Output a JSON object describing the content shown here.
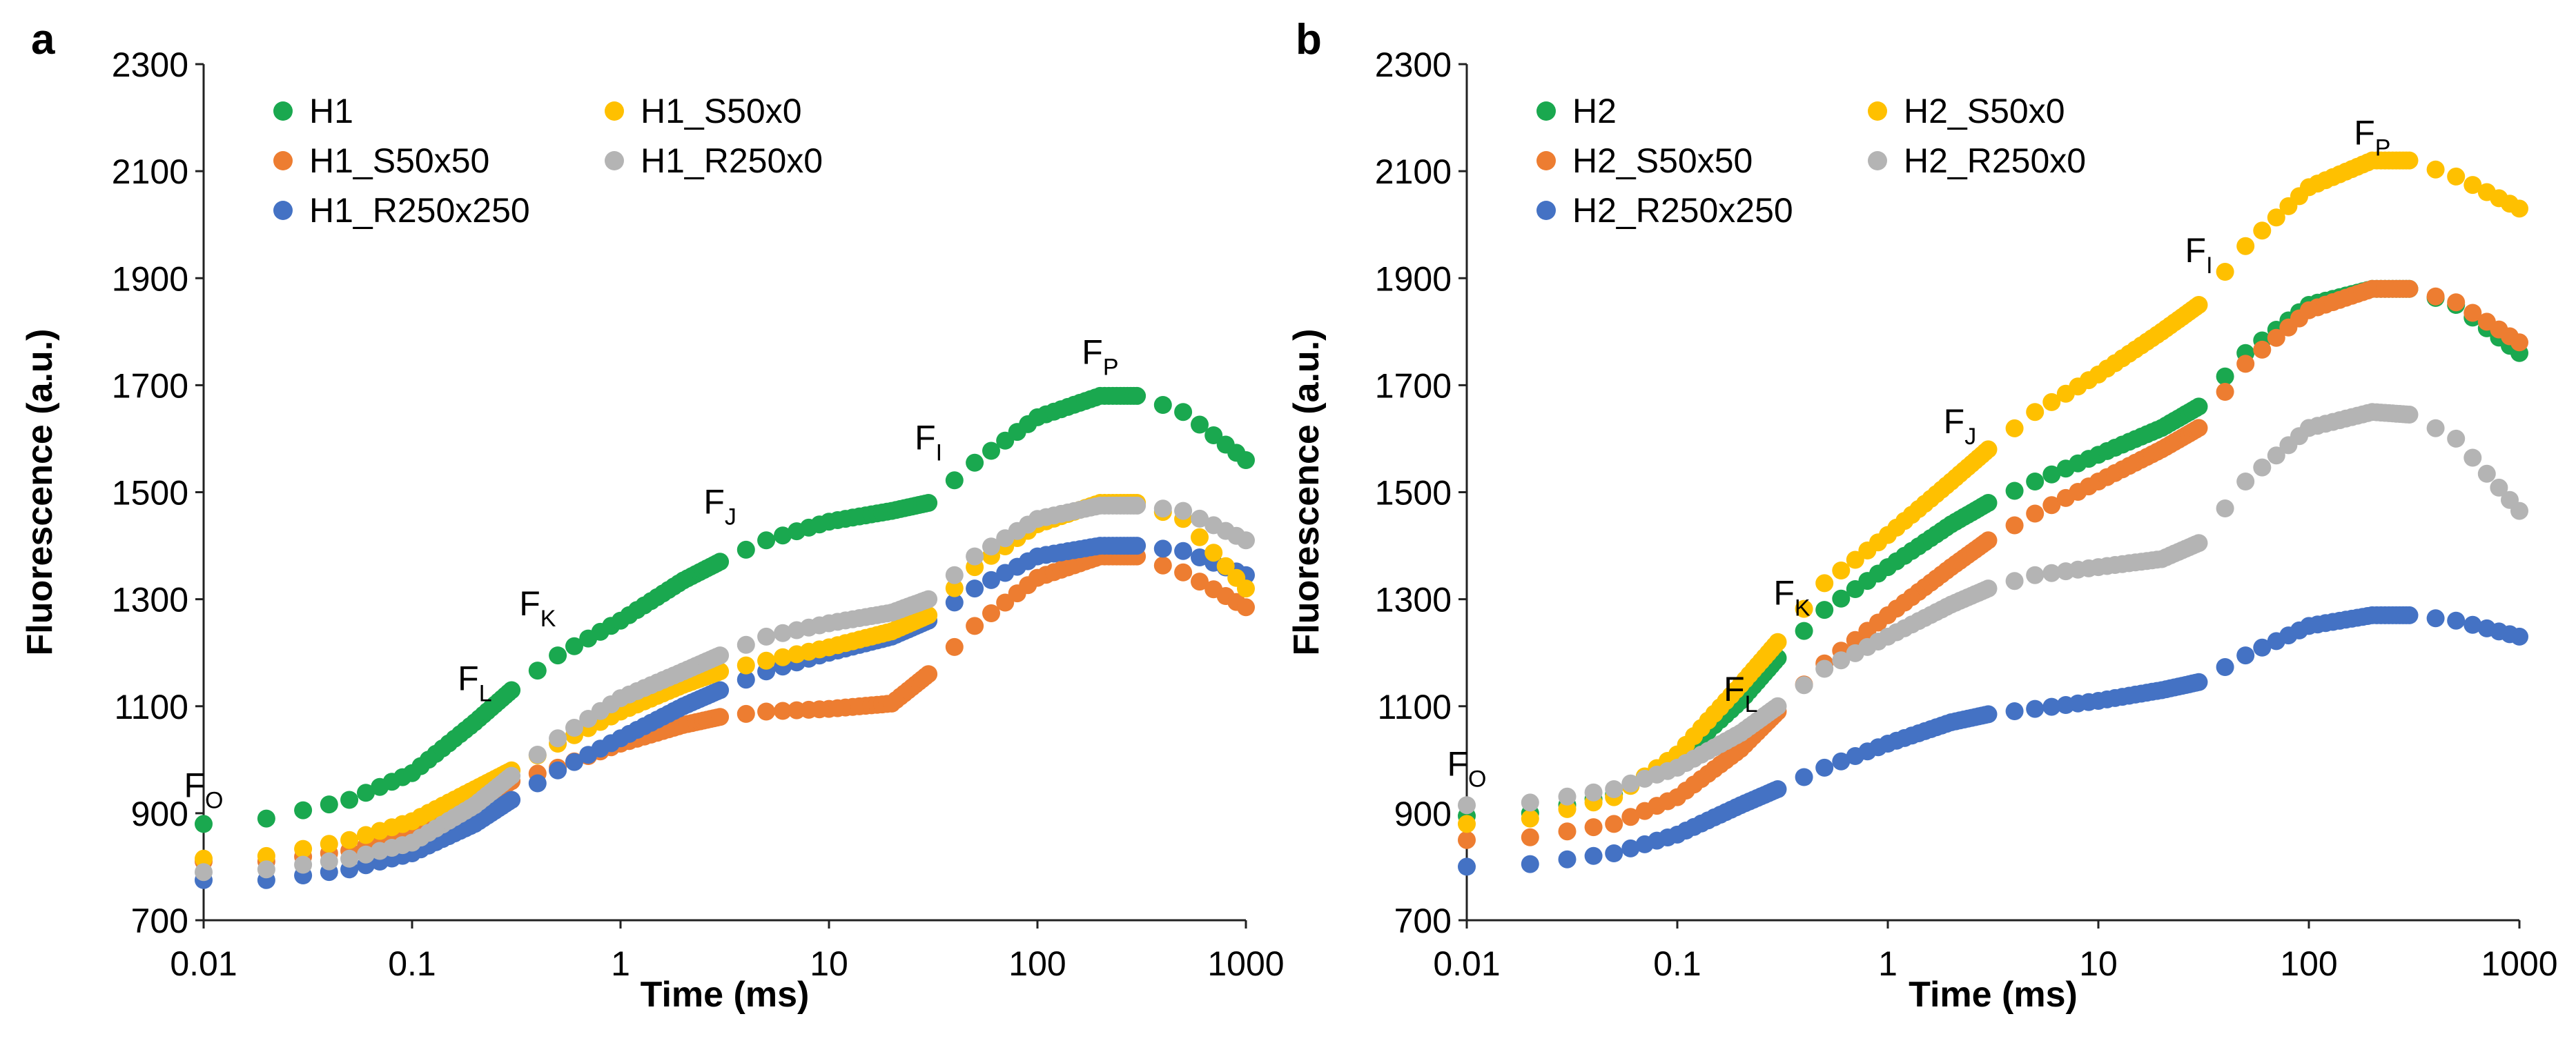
{
  "chart_data": [
    {
      "panel_label": "a",
      "type": "scatter",
      "xlabel": "Time (ms)",
      "ylabel": "Fluorescence (a.u.)",
      "xscale": "log",
      "xlim": [
        0.01,
        1000
      ],
      "ylim": [
        700,
        2300
      ],
      "xticks": [
        0.01,
        0.1,
        1,
        10,
        100,
        1000
      ],
      "xtick_labels": [
        "0.01",
        "0.1",
        "1",
        "10",
        "100",
        "1000"
      ],
      "yticks": [
        700,
        900,
        1100,
        1300,
        1500,
        1700,
        1900,
        2100,
        2300
      ],
      "ytick_labels": [
        "700",
        "900",
        "1100",
        "1300",
        "1500",
        "1700",
        "1900",
        "2100",
        "2300"
      ],
      "grid": false,
      "legend_position": "top-left",
      "series": [
        {
          "name": "H1",
          "color": "#1aa84f",
          "anchors": [
            [
              0.01,
              880
            ],
            [
              0.02,
              890
            ],
            [
              0.05,
              925
            ],
            [
              0.1,
              975
            ],
            [
              0.2,
              1070
            ],
            [
              0.3,
              1130
            ],
            [
              0.5,
              1195
            ],
            [
              1,
              1260
            ],
            [
              2,
              1335
            ],
            [
              3,
              1370
            ],
            [
              5,
              1410
            ],
            [
              10,
              1445
            ],
            [
              20,
              1465
            ],
            [
              30,
              1480
            ],
            [
              50,
              1555
            ],
            [
              100,
              1640
            ],
            [
              200,
              1680
            ],
            [
              300,
              1680
            ],
            [
              500,
              1650
            ],
            [
              1000,
              1560
            ]
          ]
        },
        {
          "name": "H1_S50x50",
          "color": "#ed7d31",
          "anchors": [
            [
              0.01,
              810
            ],
            [
              0.02,
              810
            ],
            [
              0.05,
              830
            ],
            [
              0.1,
              860
            ],
            [
              0.2,
              920
            ],
            [
              0.3,
              960
            ],
            [
              0.5,
              985
            ],
            [
              1,
              1030
            ],
            [
              2,
              1065
            ],
            [
              3,
              1080
            ],
            [
              5,
              1090
            ],
            [
              10,
              1095
            ],
            [
              20,
              1105
            ],
            [
              30,
              1160
            ],
            [
              50,
              1250
            ],
            [
              100,
              1340
            ],
            [
              200,
              1380
            ],
            [
              300,
              1380
            ],
            [
              500,
              1350
            ],
            [
              1000,
              1285
            ]
          ]
        },
        {
          "name": "H1_R250x250",
          "color": "#4472c4",
          "anchors": [
            [
              0.01,
              775
            ],
            [
              0.02,
              775
            ],
            [
              0.05,
              795
            ],
            [
              0.1,
              825
            ],
            [
              0.2,
              880
            ],
            [
              0.3,
              925
            ],
            [
              0.5,
              980
            ],
            [
              1,
              1040
            ],
            [
              2,
              1100
            ],
            [
              3,
              1130
            ],
            [
              5,
              1165
            ],
            [
              10,
              1200
            ],
            [
              20,
              1230
            ],
            [
              30,
              1260
            ],
            [
              50,
              1320
            ],
            [
              100,
              1380
            ],
            [
              200,
              1400
            ],
            [
              300,
              1400
            ],
            [
              500,
              1390
            ],
            [
              1000,
              1345
            ]
          ]
        },
        {
          "name": "H1_S50x0",
          "color": "#ffc000",
          "anchors": [
            [
              0.01,
              815
            ],
            [
              0.02,
              820
            ],
            [
              0.05,
              850
            ],
            [
              0.1,
              885
            ],
            [
              0.2,
              945
            ],
            [
              0.3,
              980
            ],
            [
              0.5,
              1030
            ],
            [
              1,
              1090
            ],
            [
              2,
              1140
            ],
            [
              3,
              1165
            ],
            [
              5,
              1185
            ],
            [
              10,
              1210
            ],
            [
              20,
              1240
            ],
            [
              30,
              1270
            ],
            [
              50,
              1360
            ],
            [
              100,
              1440
            ],
            [
              200,
              1480
            ],
            [
              300,
              1480
            ],
            [
              500,
              1450
            ],
            [
              1000,
              1320
            ]
          ]
        },
        {
          "name": "H1_R250x0",
          "color": "#b4b4b4",
          "anchors": [
            [
              0.01,
              790
            ],
            [
              0.02,
              795
            ],
            [
              0.05,
              815
            ],
            [
              0.1,
              845
            ],
            [
              0.2,
              915
            ],
            [
              0.3,
              970
            ],
            [
              0.5,
              1040
            ],
            [
              1,
              1115
            ],
            [
              2,
              1165
            ],
            [
              3,
              1195
            ],
            [
              5,
              1230
            ],
            [
              10,
              1255
            ],
            [
              20,
              1275
            ],
            [
              30,
              1300
            ],
            [
              50,
              1380
            ],
            [
              100,
              1450
            ],
            [
              200,
              1475
            ],
            [
              300,
              1475
            ],
            [
              500,
              1465
            ],
            [
              1000,
              1410
            ]
          ]
        }
      ],
      "annotations": [
        {
          "main": "F",
          "sub": "O",
          "x": 0.01,
          "y": 930
        },
        {
          "main": "F",
          "sub": "L",
          "x": 0.2,
          "y": 1130
        },
        {
          "main": "F",
          "sub": "K",
          "x": 0.4,
          "y": 1270
        },
        {
          "main": "F",
          "sub": "J",
          "x": 3,
          "y": 1460
        },
        {
          "main": "F",
          "sub": "I",
          "x": 30,
          "y": 1580
        },
        {
          "main": "F",
          "sub": "P",
          "x": 200,
          "y": 1740
        }
      ]
    },
    {
      "panel_label": "b",
      "type": "scatter",
      "xlabel": "Time (ms)",
      "ylabel": "Fluorescence (a.u.)",
      "xscale": "log",
      "xlim": [
        0.01,
        1000
      ],
      "ylim": [
        700,
        2300
      ],
      "xticks": [
        0.01,
        0.1,
        1,
        10,
        100,
        1000
      ],
      "xtick_labels": [
        "0.01",
        "0.1",
        "1",
        "10",
        "100",
        "1000"
      ],
      "yticks": [
        700,
        900,
        1100,
        1300,
        1500,
        1700,
        1900,
        2100,
        2300
      ],
      "ytick_labels": [
        "700",
        "900",
        "1100",
        "1300",
        "1500",
        "1700",
        "1900",
        "2100",
        "2300"
      ],
      "grid": false,
      "legend_position": "top-left",
      "series": [
        {
          "name": "H2",
          "color": "#1aa84f",
          "anchors": [
            [
              0.01,
              895
            ],
            [
              0.02,
              900
            ],
            [
              0.05,
              935
            ],
            [
              0.1,
              1000
            ],
            [
              0.2,
              1110
            ],
            [
              0.3,
              1190
            ],
            [
              0.5,
              1280
            ],
            [
              1,
              1360
            ],
            [
              2,
              1440
            ],
            [
              3,
              1480
            ],
            [
              5,
              1520
            ],
            [
              10,
              1570
            ],
            [
              20,
              1620
            ],
            [
              30,
              1660
            ],
            [
              50,
              1760
            ],
            [
              100,
              1850
            ],
            [
              200,
              1880
            ],
            [
              300,
              1880
            ],
            [
              500,
              1850
            ],
            [
              1000,
              1760
            ]
          ]
        },
        {
          "name": "H2_S50x50",
          "color": "#ed7d31",
          "anchors": [
            [
              0.01,
              850
            ],
            [
              0.02,
              855
            ],
            [
              0.05,
              880
            ],
            [
              0.1,
              930
            ],
            [
              0.2,
              1020
            ],
            [
              0.3,
              1090
            ],
            [
              0.5,
              1180
            ],
            [
              1,
              1270
            ],
            [
              2,
              1360
            ],
            [
              3,
              1410
            ],
            [
              5,
              1460
            ],
            [
              10,
              1520
            ],
            [
              20,
              1580
            ],
            [
              30,
              1620
            ],
            [
              50,
              1740
            ],
            [
              100,
              1840
            ],
            [
              200,
              1880
            ],
            [
              300,
              1880
            ],
            [
              500,
              1855
            ],
            [
              1000,
              1780
            ]
          ]
        },
        {
          "name": "H2_R250x250",
          "color": "#4472c4",
          "anchors": [
            [
              0.01,
              800
            ],
            [
              0.02,
              805
            ],
            [
              0.05,
              825
            ],
            [
              0.1,
              860
            ],
            [
              0.2,
              915
            ],
            [
              0.3,
              945
            ],
            [
              0.5,
              985
            ],
            [
              1,
              1030
            ],
            [
              2,
              1070
            ],
            [
              3,
              1085
            ],
            [
              5,
              1095
            ],
            [
              10,
              1110
            ],
            [
              20,
              1130
            ],
            [
              30,
              1145
            ],
            [
              50,
              1195
            ],
            [
              100,
              1250
            ],
            [
              200,
              1270
            ],
            [
              300,
              1270
            ],
            [
              500,
              1260
            ],
            [
              1000,
              1230
            ]
          ]
        },
        {
          "name": "H2_S50x0",
          "color": "#ffc000",
          "anchors": [
            [
              0.01,
              880
            ],
            [
              0.02,
              890
            ],
            [
              0.05,
              930
            ],
            [
              0.1,
              1010
            ],
            [
              0.2,
              1140
            ],
            [
              0.3,
              1220
            ],
            [
              0.5,
              1330
            ],
            [
              1,
              1420
            ],
            [
              2,
              1520
            ],
            [
              3,
              1580
            ],
            [
              5,
              1650
            ],
            [
              10,
              1720
            ],
            [
              20,
              1800
            ],
            [
              30,
              1850
            ],
            [
              50,
              1960
            ],
            [
              100,
              2070
            ],
            [
              200,
              2120
            ],
            [
              300,
              2120
            ],
            [
              500,
              2090
            ],
            [
              1000,
              2030
            ]
          ]
        },
        {
          "name": "H2_R250x0",
          "color": "#b4b4b4",
          "anchors": [
            [
              0.01,
              915
            ],
            [
              0.02,
              920
            ],
            [
              0.05,
              945
            ],
            [
              0.1,
              985
            ],
            [
              0.2,
              1050
            ],
            [
              0.3,
              1100
            ],
            [
              0.5,
              1170
            ],
            [
              1,
              1230
            ],
            [
              2,
              1290
            ],
            [
              3,
              1320
            ],
            [
              5,
              1345
            ],
            [
              10,
              1360
            ],
            [
              20,
              1375
            ],
            [
              30,
              1405
            ],
            [
              50,
              1520
            ],
            [
              100,
              1620
            ],
            [
              200,
              1650
            ],
            [
              300,
              1645
            ],
            [
              500,
              1600
            ],
            [
              1000,
              1465
            ]
          ]
        }
      ],
      "annotations": [
        {
          "main": "F",
          "sub": "O",
          "x": 0.01,
          "y": 970
        },
        {
          "main": "F",
          "sub": "L",
          "x": 0.2,
          "y": 1110
        },
        {
          "main": "F",
          "sub": "K",
          "x": 0.35,
          "y": 1290
        },
        {
          "main": "F",
          "sub": "J",
          "x": 2.2,
          "y": 1610
        },
        {
          "main": "F",
          "sub": "I",
          "x": 30,
          "y": 1930
        },
        {
          "main": "F",
          "sub": "P",
          "x": 200,
          "y": 2150
        }
      ]
    }
  ]
}
